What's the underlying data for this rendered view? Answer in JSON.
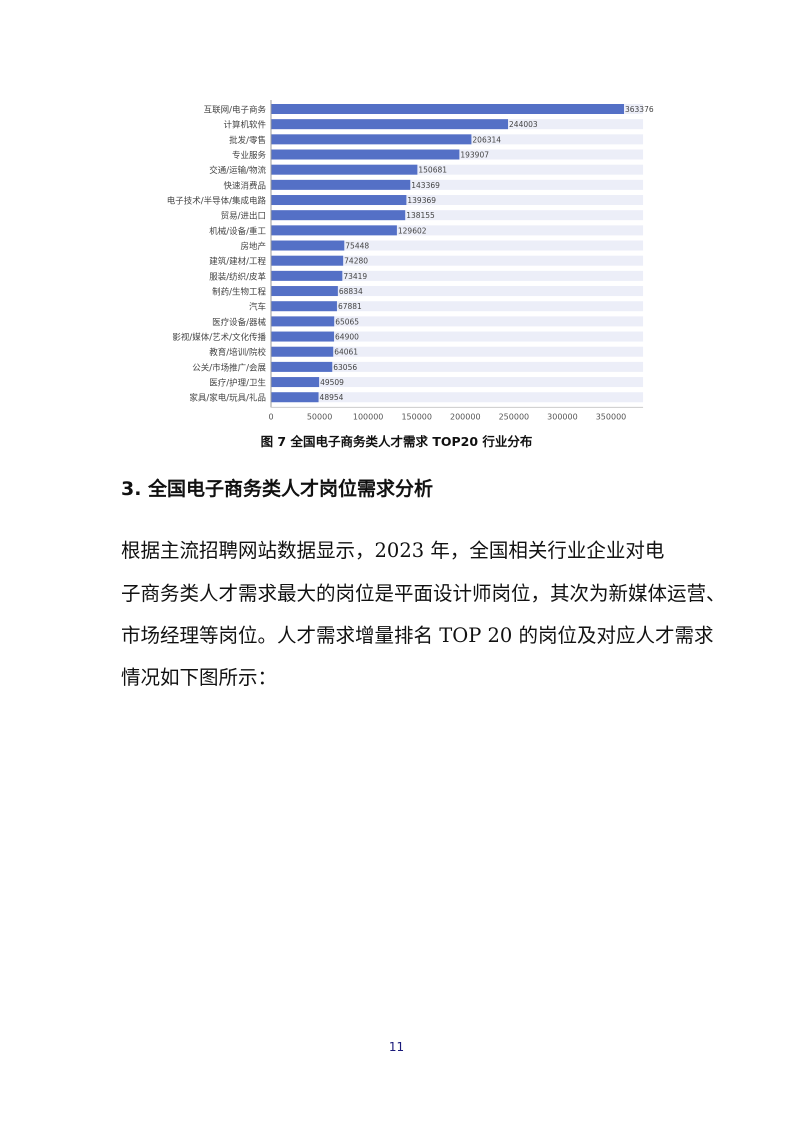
{
  "chart_data": {
    "type": "bar",
    "orientation": "horizontal",
    "categories": [
      "互联网/电子商务",
      "计算机软件",
      "批发/零售",
      "专业服务",
      "交通/运输/物流",
      "快速消费品",
      "电子技术/半导体/集成电路",
      "贸易/进出口",
      "机械/设备/重工",
      "房地产",
      "建筑/建材/工程",
      "服装/纺织/皮革",
      "制药/生物工程",
      "汽车",
      "医疗设备/器械",
      "影视/媒体/艺术/文化传播",
      "教育/培训/院校",
      "公关/市场推广/会展",
      "医疗/护理/卫生",
      "家具/家电/玩具/礼品"
    ],
    "values": [
      363376,
      244003,
      206314,
      193907,
      150681,
      143369,
      139369,
      138155,
      129602,
      75448,
      74280,
      73419,
      68834,
      67881,
      65065,
      64900,
      64061,
      63056,
      49509,
      48954
    ],
    "data_labels": [
      "363376",
      "244003",
      "206314",
      "193907",
      "150681",
      "143369",
      "139369",
      "138155",
      "129602",
      "75448",
      "74280",
      "73419",
      "68834",
      "67881",
      "65065",
      "64900",
      "64061",
      "63056",
      "49509",
      "48954"
    ],
    "xticks": [
      "0",
      "50000",
      "100000",
      "150000",
      "200000",
      "250000",
      "300000",
      "350000"
    ],
    "xlim": [
      0,
      383000
    ],
    "bar_color": "#5470c6",
    "background_color": "#eceef8",
    "grid": false,
    "title": ""
  },
  "caption": "图 7  全国电子商务类人才需求 TOP20 行业分布",
  "heading": "3. 全国电子商务类人才岗位需求分析",
  "paragraph_lines": [
    "    根据主流招聘网站数据显示，2023 年，全国相关行业企业对电",
    "子商务类人才需求最大的岗位是平面设计师岗位，其次为新媒体运营、",
    "市场经理等岗位。人才需求增量排名 TOP 20 的岗位及对应人才需求",
    "情况如下图所示："
  ],
  "page_number": "11"
}
